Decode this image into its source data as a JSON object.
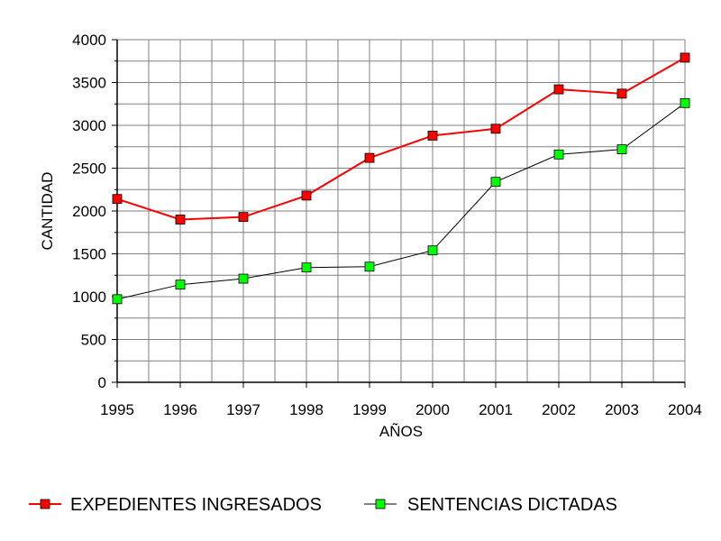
{
  "chart_data": {
    "type": "line",
    "title": "",
    "xlabel": "AÑOS",
    "ylabel": "CANTIDAD",
    "x": [
      "1995",
      "1996",
      "1997",
      "1998",
      "1999",
      "2000",
      "2001",
      "2002",
      "2003",
      "2004"
    ],
    "ylim": [
      0,
      4000
    ],
    "yticks": [
      "0",
      "500",
      "1000",
      "1500",
      "2000",
      "2500",
      "3000",
      "3500",
      "4000"
    ],
    "grid": true,
    "legend_position": "bottom",
    "series": [
      {
        "name": "EXPEDIENTES INGRESADOS",
        "color": "#ff0000",
        "marker_color": "#ff0000",
        "values": [
          2140,
          1900,
          1930,
          2180,
          2620,
          2880,
          2960,
          3420,
          3370,
          3790
        ]
      },
      {
        "name": "SENTENCIAS DICTADAS",
        "color": "#000000",
        "marker_color": "#00ff00",
        "values": [
          970,
          1140,
          1210,
          1340,
          1350,
          1540,
          2340,
          2660,
          2720,
          3260
        ]
      }
    ]
  }
}
